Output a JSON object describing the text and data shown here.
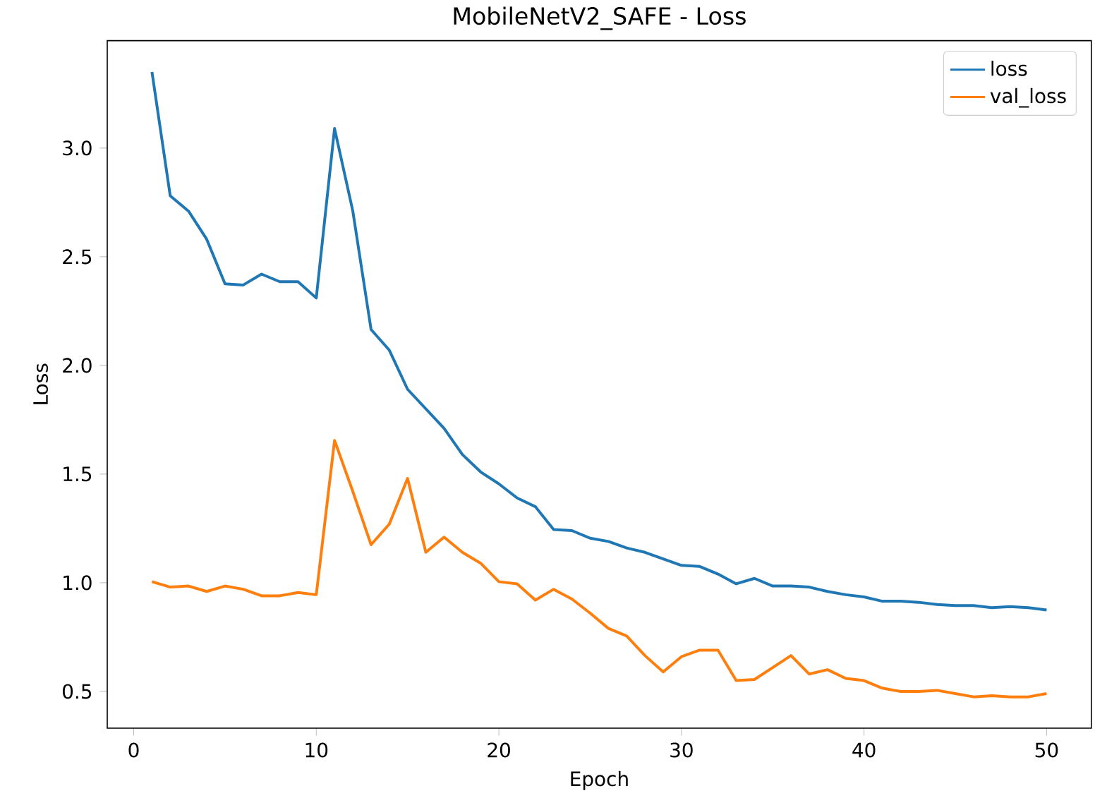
{
  "chart_data": {
    "type": "line",
    "title": "MobileNetV2_SAFE - Loss",
    "xlabel": "Epoch",
    "ylabel": "Loss",
    "x": [
      1,
      2,
      3,
      4,
      5,
      6,
      7,
      8,
      9,
      10,
      11,
      12,
      13,
      14,
      15,
      16,
      17,
      18,
      19,
      20,
      21,
      22,
      23,
      24,
      25,
      26,
      27,
      28,
      29,
      30,
      31,
      32,
      33,
      34,
      35,
      36,
      37,
      38,
      39,
      40,
      41,
      42,
      43,
      44,
      45,
      46,
      47,
      48,
      49,
      50
    ],
    "series": [
      {
        "name": "loss",
        "color": "#1f77b4",
        "values": [
          3.35,
          2.78,
          2.71,
          2.58,
          2.375,
          2.37,
          2.42,
          2.385,
          2.385,
          2.31,
          3.09,
          2.71,
          2.165,
          2.07,
          1.89,
          1.8,
          1.71,
          1.59,
          1.51,
          1.455,
          1.39,
          1.35,
          1.245,
          1.24,
          1.205,
          1.19,
          1.16,
          1.14,
          1.11,
          1.08,
          1.075,
          1.04,
          0.995,
          1.02,
          0.985,
          0.985,
          0.98,
          0.96,
          0.945,
          0.935,
          0.915,
          0.915,
          0.91,
          0.9,
          0.895,
          0.895,
          0.885,
          0.89,
          0.885,
          0.875
        ]
      },
      {
        "name": "val_loss",
        "color": "#ff7f0e",
        "values": [
          1.005,
          0.98,
          0.985,
          0.96,
          0.985,
          0.97,
          0.94,
          0.94,
          0.955,
          0.945,
          1.655,
          1.42,
          1.175,
          1.27,
          1.48,
          1.14,
          1.21,
          1.14,
          1.09,
          1.005,
          0.995,
          0.92,
          0.97,
          0.925,
          0.86,
          0.79,
          0.755,
          0.665,
          0.59,
          0.66,
          0.69,
          0.69,
          0.55,
          0.555,
          0.61,
          0.665,
          0.58,
          0.6,
          0.56,
          0.55,
          0.515,
          0.5,
          0.5,
          0.505,
          0.49,
          0.475,
          0.48,
          0.475,
          0.475,
          0.49
        ]
      }
    ],
    "xlim": [
      -1.45,
      52.45
    ],
    "ylim": [
      0.331,
      3.494
    ],
    "xticks": [
      0,
      10,
      20,
      30,
      40,
      50
    ],
    "yticks": [
      0.5,
      {
        "value": 1,
        "label": "1.0"
      },
      1.5,
      {
        "value": 2,
        "label": "2.0"
      },
      2.5,
      {
        "value": 3,
        "label": "3.0"
      }
    ],
    "grid": false,
    "legend": "top right",
    "marker": "none",
    "line_style": "solid"
  }
}
